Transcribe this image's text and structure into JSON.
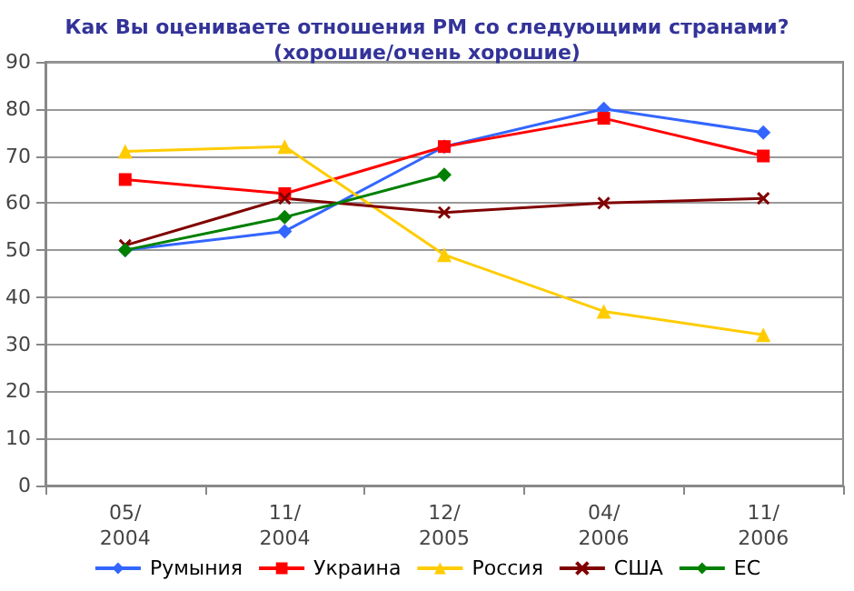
{
  "chart_data": {
    "type": "line",
    "title": "Как Вы оцениваете отношения РМ со следующими странами?\n(хорошие/очень хорошие)",
    "categories": [
      "05/\n2004",
      "11/\n2004",
      "12/\n2005",
      "04/\n2006",
      "11/\n2006"
    ],
    "series": [
      {
        "name": "Румыния",
        "color": "#3366ff",
        "marker": "diamond",
        "values": [
          50,
          54,
          72,
          80,
          75
        ]
      },
      {
        "name": "Украина",
        "color": "#ff0000",
        "marker": "square",
        "values": [
          65,
          62,
          72,
          78,
          70
        ]
      },
      {
        "name": "Россия",
        "color": "#ffcc00",
        "marker": "triangle",
        "values": [
          71,
          72,
          49,
          37,
          32
        ]
      },
      {
        "name": "США",
        "color": "#800000",
        "marker": "cross",
        "values": [
          51,
          61,
          58,
          60,
          61
        ]
      },
      {
        "name": "ЕС",
        "color": "#008000",
        "marker": "diamond",
        "values": [
          50,
          57,
          66,
          null,
          null
        ]
      }
    ],
    "ylim": [
      0,
      90
    ],
    "yticks": [
      0,
      10,
      20,
      30,
      40,
      50,
      60,
      70,
      80,
      90
    ],
    "grid": "y",
    "legend": "bottom"
  }
}
